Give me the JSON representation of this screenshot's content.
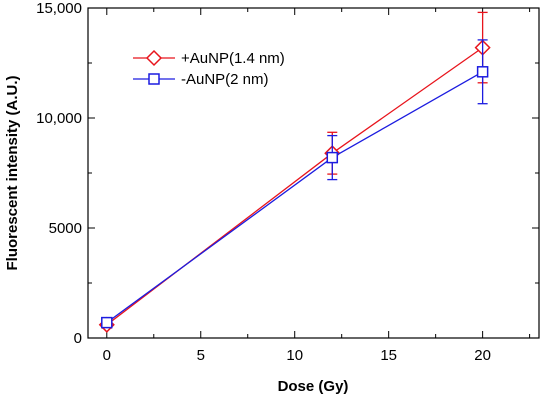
{
  "chart_data": {
    "type": "line",
    "title": "",
    "xlabel": "Dose  (Gy)",
    "ylabel": "Fluorescent intensity (A.U.)",
    "xlim": [
      -1,
      23
    ],
    "ylim": [
      0,
      15000
    ],
    "xticks": [
      0,
      5,
      10,
      15,
      20
    ],
    "xtick_labels": [
      "0",
      "5",
      "10",
      "15",
      "20"
    ],
    "yticks": [
      0,
      5000,
      10000,
      15000
    ],
    "ytick_labels": [
      "0",
      "5000",
      "10,000",
      "15,000"
    ],
    "grid": false,
    "legend_position": "top-left",
    "series": [
      {
        "name": "+AuNP(1.4 nm)",
        "color": "#e8141c",
        "marker": "diamond",
        "x": [
          0,
          12,
          20
        ],
        "y": [
          600,
          8400,
          13200
        ],
        "err": [
          150,
          950,
          1600
        ]
      },
      {
        "name": "-AuNP(2 nm)",
        "color": "#1c1ce0",
        "marker": "square",
        "x": [
          0,
          12,
          20
        ],
        "y": [
          700,
          8200,
          12100
        ],
        "err": [
          200,
          1000,
          1450
        ]
      }
    ]
  }
}
